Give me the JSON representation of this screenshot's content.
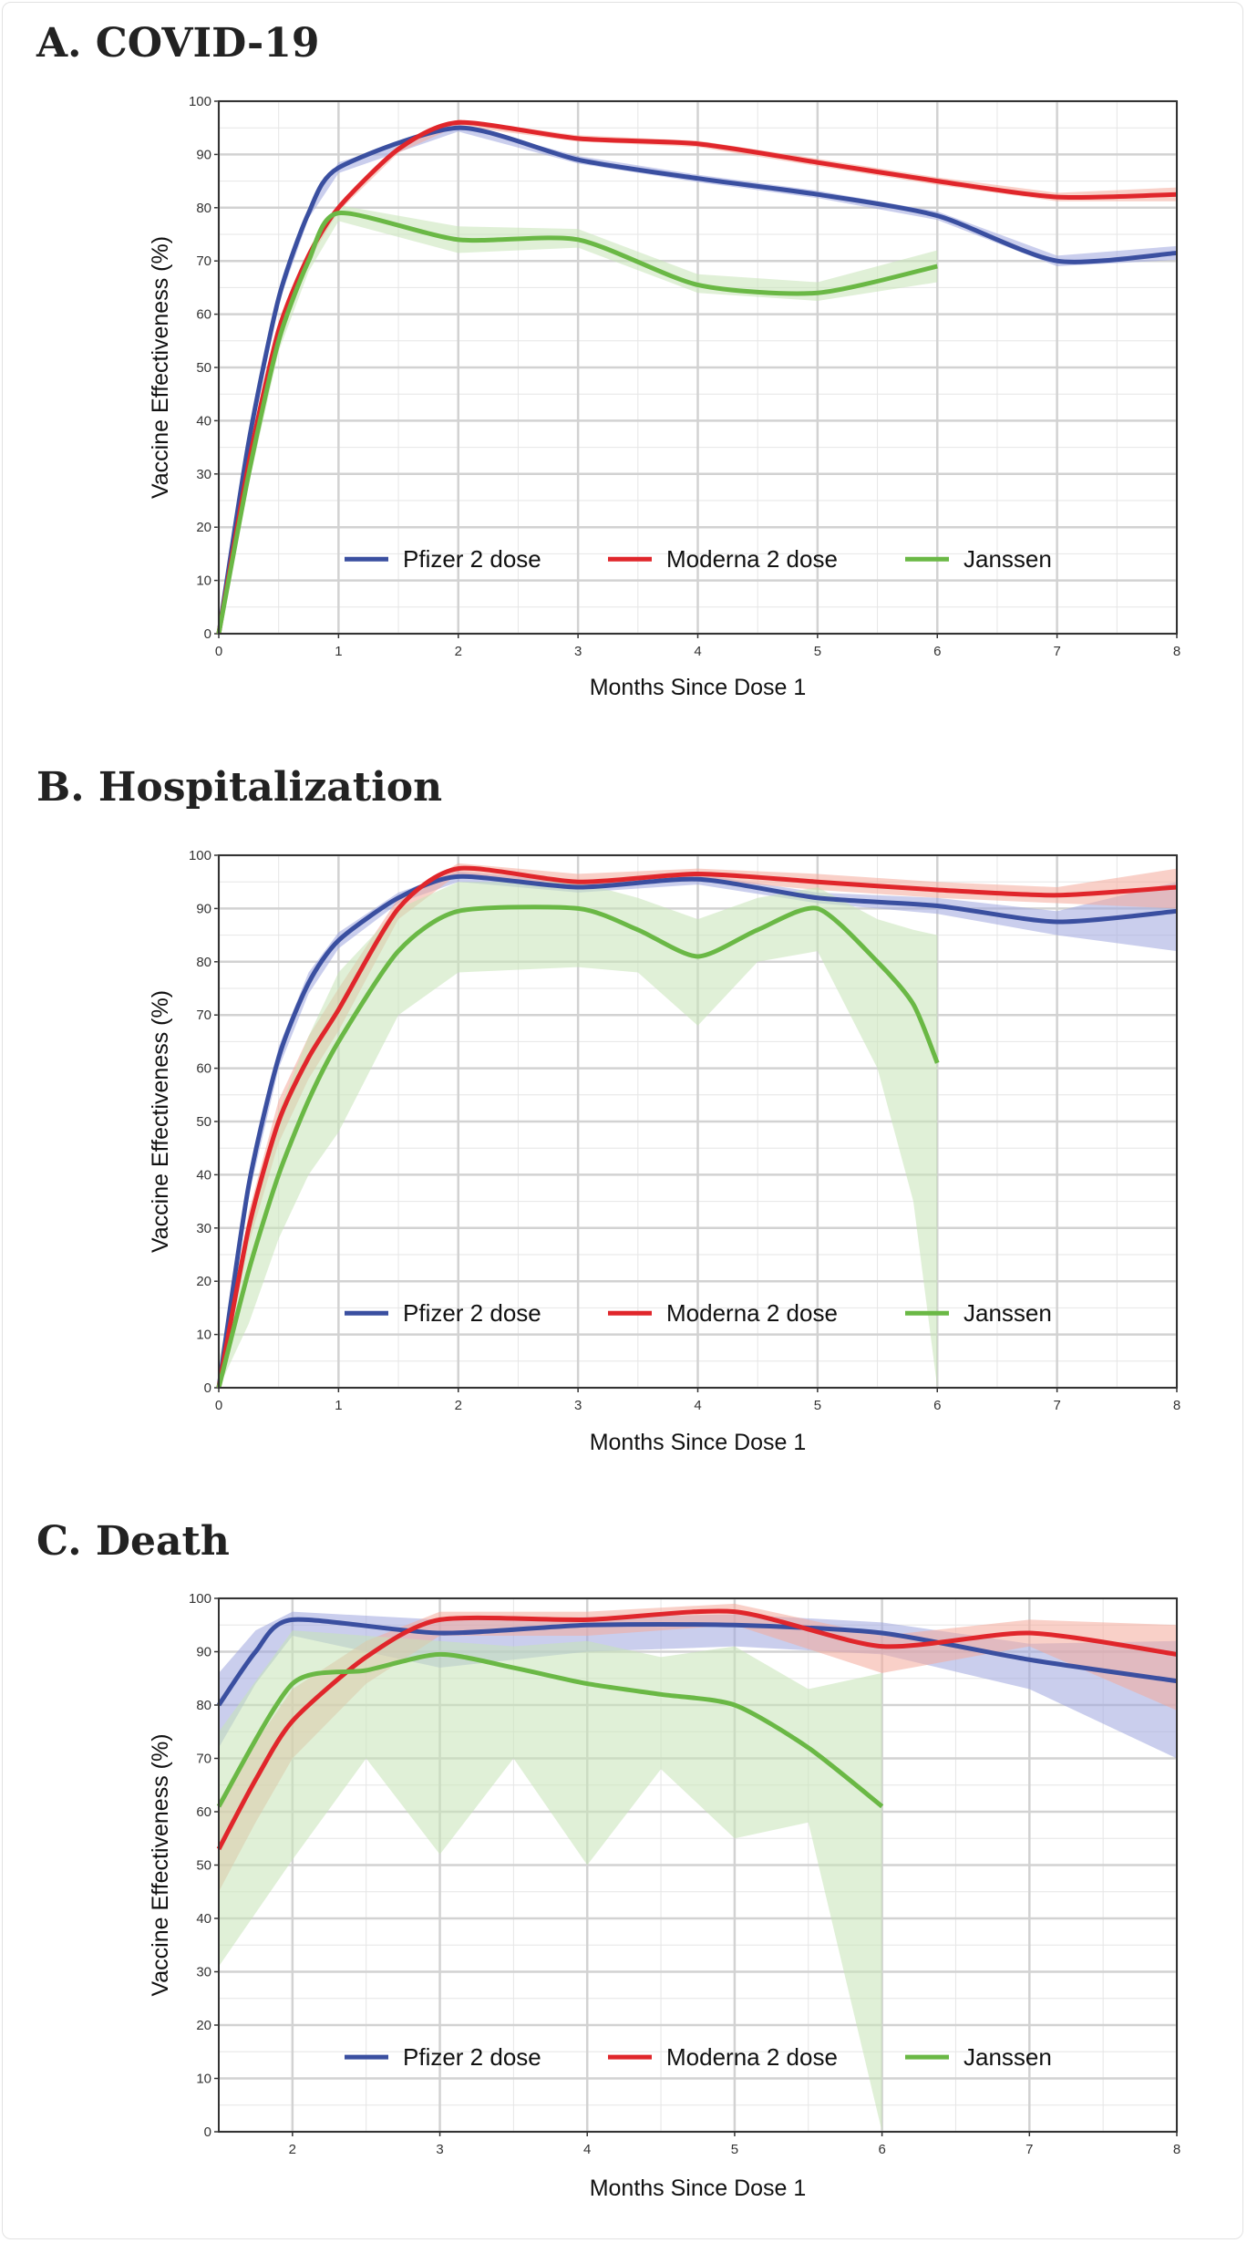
{
  "colors": {
    "pfizer": "#3a4fa0",
    "moderna": "#e0262b",
    "janssen": "#6ab845",
    "pfizer_band": "#9ea6de",
    "moderna_band": "#f4a99a",
    "janssen_band": "#c6e3b6"
  },
  "chart_data": [
    {
      "type": "line",
      "title": "A. COVID-19",
      "xlabel": "Months Since Dose 1",
      "ylabel": "Vaccine Effectiveness (%)",
      "xlim": [
        0,
        8
      ],
      "ylim": [
        0,
        100
      ],
      "xticks": [
        0,
        1,
        2,
        3,
        4,
        5,
        6,
        7,
        8
      ],
      "yticks": [
        0,
        10,
        20,
        30,
        40,
        50,
        60,
        70,
        80,
        90,
        100
      ],
      "grid": true,
      "legend": "bottom-center",
      "series": [
        {
          "name": "Pfizer 2 dose",
          "key": "pfizer",
          "x": [
            0,
            0.25,
            0.5,
            0.75,
            1,
            2,
            3,
            4,
            5,
            6,
            7,
            8
          ],
          "y": [
            0,
            36,
            63,
            79,
            87.5,
            95,
            89,
            85.5,
            82.5,
            78.5,
            70,
            71.5
          ],
          "lower": [
            0,
            35,
            62,
            78,
            86.5,
            94.3,
            88.3,
            84.8,
            81.8,
            77.7,
            69,
            70.2
          ],
          "upper": [
            0,
            37,
            64,
            80,
            88.5,
            95.7,
            89.7,
            86.2,
            83.2,
            79.3,
            71,
            72.8
          ]
        },
        {
          "name": "Moderna 2 dose",
          "key": "moderna",
          "x": [
            0,
            0.25,
            0.5,
            0.75,
            1,
            1.5,
            2,
            3,
            4,
            5,
            6,
            7,
            8
          ],
          "y": [
            0,
            32,
            57,
            71,
            80,
            91,
            96,
            93,
            92,
            88.5,
            85,
            82,
            82.5
          ],
          "lower": [
            0,
            31,
            56,
            70,
            79.3,
            90.3,
            95.4,
            92.4,
            91.4,
            87.8,
            84.3,
            81.2,
            81.2
          ],
          "upper": [
            0,
            33,
            58,
            72,
            80.7,
            91.7,
            96.6,
            93.6,
            92.6,
            89.2,
            85.7,
            82.8,
            83.8
          ]
        },
        {
          "name": "Janssen",
          "key": "janssen",
          "x": [
            0,
            0.25,
            0.5,
            0.75,
            1,
            2,
            3,
            4,
            5,
            6
          ],
          "y": [
            0,
            30,
            55,
            70,
            79,
            74,
            74,
            65.5,
            64,
            69
          ],
          "lower": [
            0,
            28,
            53,
            68,
            77.5,
            71.5,
            72.5,
            64,
            62.5,
            66
          ],
          "upper": [
            0,
            32,
            57,
            72,
            80.5,
            76.5,
            76,
            67.5,
            66,
            72
          ]
        }
      ]
    },
    {
      "type": "line",
      "title": "B. Hospitalization",
      "xlabel": "Months Since Dose 1",
      "ylabel": "Vaccine Effectiveness (%)",
      "xlim": [
        0,
        8
      ],
      "ylim": [
        0,
        100
      ],
      "xticks": [
        0,
        1,
        2,
        3,
        4,
        5,
        6,
        7,
        8
      ],
      "yticks": [
        0,
        10,
        20,
        30,
        40,
        50,
        60,
        70,
        80,
        90,
        100
      ],
      "grid": true,
      "legend": "bottom-center",
      "series": [
        {
          "name": "Pfizer 2 dose",
          "key": "pfizer",
          "x": [
            0,
            0.25,
            0.5,
            0.75,
            1,
            1.5,
            2,
            3,
            4,
            5,
            6,
            7,
            8
          ],
          "y": [
            0,
            38,
            62,
            76,
            84,
            92,
            96,
            94,
            95.5,
            92,
            90.5,
            87.5,
            89.5
          ],
          "lower": [
            0,
            36,
            60,
            74,
            82.5,
            91,
            95,
            93,
            94.5,
            91,
            89,
            85,
            82
          ],
          "upper": [
            0,
            40,
            64,
            78,
            85.5,
            93,
            97,
            95,
            96.5,
            93,
            92,
            89.5,
            95
          ]
        },
        {
          "name": "Moderna 2 dose",
          "key": "moderna",
          "x": [
            0,
            0.25,
            0.5,
            0.75,
            1,
            1.5,
            2,
            3,
            4,
            5,
            6,
            7,
            8
          ],
          "y": [
            0,
            30,
            50,
            62,
            71,
            90,
            97.5,
            95,
            96.5,
            95,
            93.5,
            92.5,
            94
          ],
          "lower": [
            0,
            27,
            46,
            58,
            67,
            88,
            96.5,
            93.5,
            95.5,
            93.5,
            92,
            91,
            90
          ],
          "upper": [
            0,
            33,
            54,
            66,
            75,
            92,
            98.5,
            96.5,
            97.5,
            96.5,
            95,
            94,
            97.5
          ]
        },
        {
          "name": "Janssen",
          "key": "janssen",
          "x": [
            0,
            0.25,
            0.5,
            0.75,
            1,
            1.5,
            2,
            3,
            3.5,
            4,
            4.5,
            5,
            5.5,
            5.8,
            6
          ],
          "y": [
            0,
            22,
            40,
            54,
            65,
            82,
            89.5,
            90,
            86,
            81,
            86,
            90,
            80,
            72,
            61
          ],
          "lower": [
            0,
            12,
            28,
            40,
            48,
            70,
            78,
            79,
            78,
            68,
            80,
            82,
            60,
            35,
            0
          ],
          "upper": [
            5,
            32,
            52,
            66,
            78,
            90,
            95,
            95,
            92,
            88,
            92,
            94,
            88,
            86,
            85
          ]
        }
      ]
    },
    {
      "type": "line",
      "title": "C. Death",
      "xlabel": "Months Since Dose 1",
      "ylabel": "Vaccine Effectiveness (%)",
      "xlim": [
        1.5,
        8
      ],
      "ylim": [
        0,
        100
      ],
      "xticks": [
        2,
        3,
        4,
        5,
        6,
        7,
        8
      ],
      "yticks": [
        0,
        10,
        20,
        30,
        40,
        50,
        60,
        70,
        80,
        90,
        100
      ],
      "grid": true,
      "legend": "bottom-center",
      "series": [
        {
          "name": "Pfizer 2 dose",
          "key": "pfizer",
          "x": [
            1.5,
            1.75,
            2,
            3,
            4,
            5,
            6,
            7,
            8
          ],
          "y": [
            80,
            90,
            96,
            93.5,
            95,
            95,
            93.5,
            88.5,
            84.5
          ],
          "lower": [
            72,
            84,
            93,
            87,
            90,
            91,
            89.5,
            83,
            70
          ],
          "upper": [
            86,
            94,
            97.5,
            96,
            96.5,
            97,
            95.5,
            91.5,
            92
          ]
        },
        {
          "name": "Moderna 2 dose",
          "key": "moderna",
          "x": [
            1.5,
            1.75,
            2,
            2.5,
            3,
            4,
            5,
            6,
            7,
            8
          ],
          "y": [
            53,
            66,
            77,
            89,
            96,
            96,
            97.5,
            91,
            93.5,
            89.5
          ],
          "lower": [
            45,
            58,
            70,
            84,
            93,
            93,
            95,
            86,
            91,
            79
          ],
          "upper": [
            62,
            73,
            83,
            92,
            97.5,
            97.5,
            99,
            93,
            96,
            95
          ]
        },
        {
          "name": "Janssen",
          "key": "janssen",
          "x": [
            1.5,
            2,
            2.5,
            3,
            3.5,
            4,
            4.5,
            5,
            5.5,
            6
          ],
          "y": [
            61,
            84,
            86.5,
            89.5,
            87,
            84,
            82,
            80,
            72,
            61
          ],
          "lower": [
            31,
            51,
            70,
            52,
            70,
            50,
            68,
            55,
            58,
            0
          ],
          "upper": [
            75,
            94,
            93,
            92,
            91,
            92,
            89,
            91,
            83,
            86
          ]
        }
      ]
    }
  ]
}
